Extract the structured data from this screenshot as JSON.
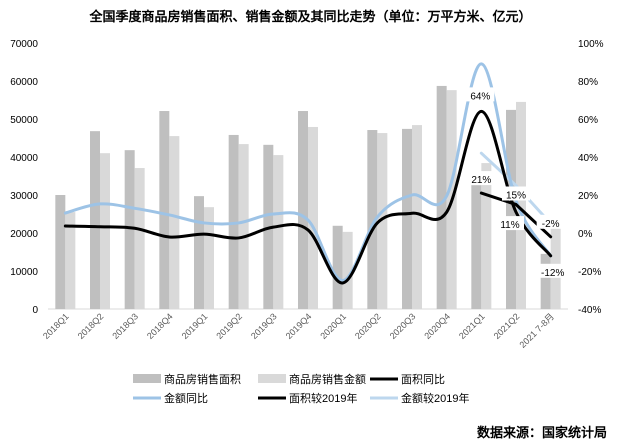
{
  "chart_data": {
    "type": "bar+line",
    "title": "全国季度商品房销售面积、销售金额及其同比走势（单位：万平方米、亿元）",
    "categories": [
      "2018Q1",
      "2018Q2",
      "2018Q3",
      "2018Q4",
      "2019Q1",
      "2019Q2",
      "2019Q3",
      "2019Q4",
      "2020Q1",
      "2020Q2",
      "2020Q3",
      "2020Q4",
      "2021Q1",
      "2021Q2",
      "2021 7-8月"
    ],
    "y_left": {
      "min": 0,
      "max": 70000,
      "step": 10000,
      "ticks": [
        "0",
        "10000",
        "20000",
        "30000",
        "40000",
        "50000",
        "60000",
        "70000"
      ]
    },
    "y_right": {
      "min": -40,
      "max": 100,
      "step": 20,
      "ticks": [
        "-40%",
        "-20%",
        "0%",
        "20%",
        "40%",
        "60%",
        "80%",
        "100%"
      ]
    },
    "grid": false,
    "legend_position": "bottom",
    "bars": [
      {
        "name": "商品房销售面积",
        "color": "#bfbfbf",
        "values": [
          30000,
          46800,
          41800,
          52100,
          29700,
          45800,
          43200,
          52100,
          21900,
          47100,
          47400,
          58700,
          32600,
          52400,
          14500
        ]
      },
      {
        "name": "商品房销售金额",
        "color": "#d9d9d9",
        "values": [
          25500,
          41000,
          37100,
          45500,
          26800,
          43400,
          40500,
          47900,
          20300,
          46300,
          48400,
          57600,
          38400,
          54500,
          21300
        ]
      }
    ],
    "lines": [
      {
        "name": "面积同比",
        "color": "#000000",
        "smooth": true,
        "values": [
          3.7,
          3.3,
          2.5,
          -2.1,
          -0.6,
          -2.6,
          3.1,
          1.6,
          -26.3,
          5.3,
          10.4,
          11,
          64,
          11,
          -12
        ]
      },
      {
        "name": "金额同比",
        "color": "#9dc3e6",
        "smooth": true,
        "values": [
          10.5,
          15.3,
          13,
          9.5,
          5.3,
          5.3,
          10,
          6.8,
          -25,
          8.4,
          20,
          19.5,
          89,
          17,
          -12
        ]
      },
      {
        "name": "面积较2019年",
        "color": "#000000",
        "smooth": false,
        "values": [
          null,
          null,
          null,
          null,
          null,
          null,
          null,
          null,
          null,
          null,
          null,
          null,
          21,
          15,
          -2
        ]
      },
      {
        "name": "金额较2019年",
        "color": "#bdd7ee",
        "smooth": false,
        "values": [
          null,
          null,
          null,
          null,
          null,
          null,
          null,
          null,
          null,
          null,
          null,
          null,
          42,
          25,
          5
        ]
      }
    ],
    "data_labels": [
      {
        "series": "面积同比",
        "category": "2021Q1",
        "text": "64%"
      },
      {
        "series": "面积较2019年",
        "category": "2021Q1",
        "text": "21%"
      },
      {
        "series": "面积较2019年",
        "category": "2021Q2",
        "text": "15%"
      },
      {
        "series": "面积同比",
        "category": "2021Q2",
        "text": "11%"
      },
      {
        "series": "面积较2019年",
        "category": "2021 7-8月",
        "text": "-2%"
      },
      {
        "series": "面积同比",
        "category": "2021 7-8月",
        "text": "-12%"
      }
    ]
  },
  "source": "数据来源：国家统计局"
}
